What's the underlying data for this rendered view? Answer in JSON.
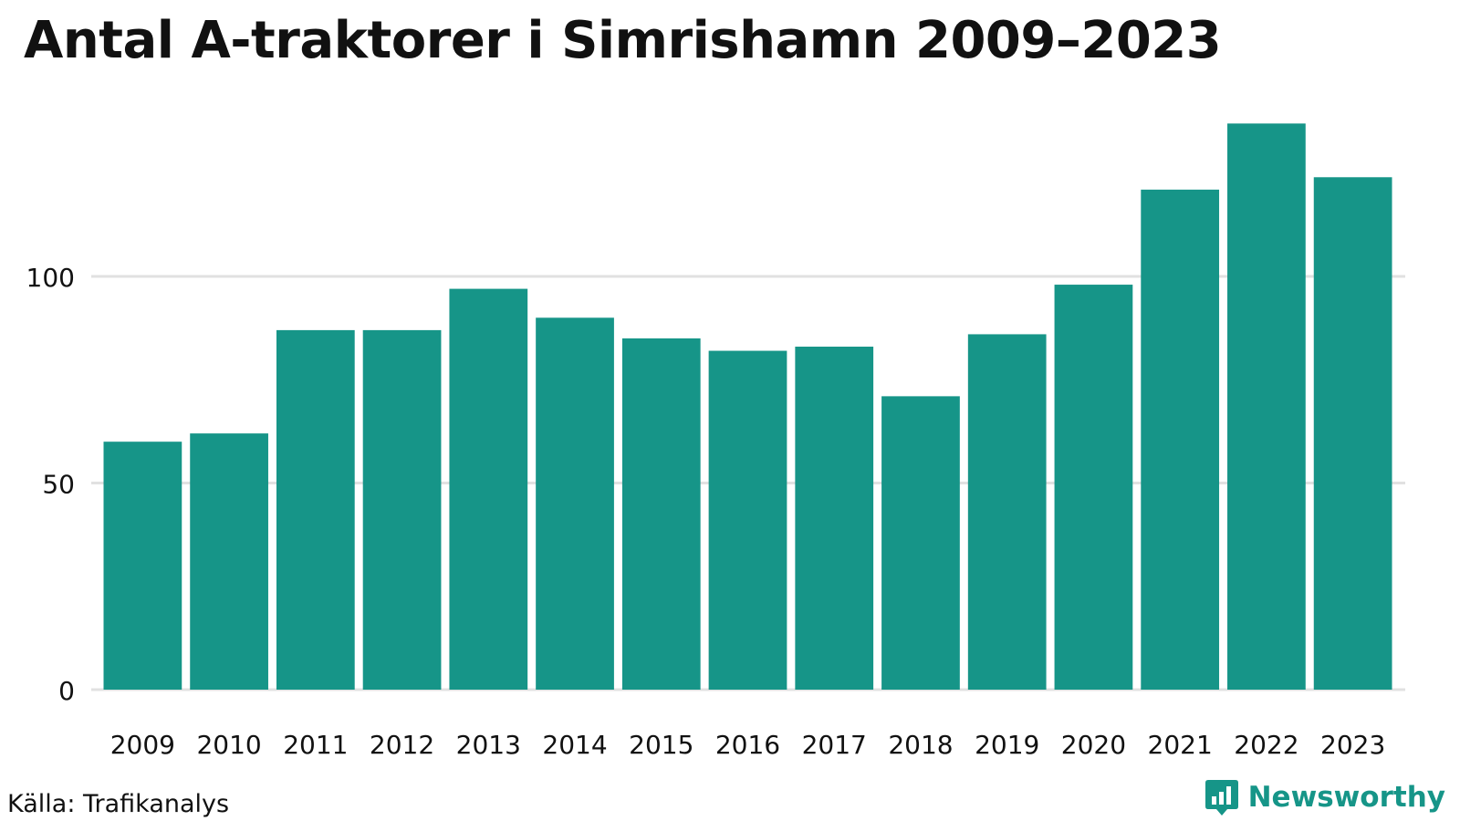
{
  "chart_data": {
    "type": "bar",
    "title": "Antal A-traktorer i Simrishamn 2009–2023",
    "categories": [
      "2009",
      "2010",
      "2011",
      "2012",
      "2013",
      "2014",
      "2015",
      "2016",
      "2017",
      "2018",
      "2019",
      "2020",
      "2021",
      "2022",
      "2023"
    ],
    "values": [
      60,
      62,
      87,
      87,
      97,
      90,
      85,
      82,
      83,
      71,
      86,
      98,
      121,
      137,
      124
    ],
    "yticks": [
      0,
      50,
      100
    ],
    "ylim": [
      0,
      140
    ],
    "xlabel": "",
    "ylabel": "",
    "bar_color": "#169588",
    "grid_color": "#e1e1e1"
  },
  "footer": {
    "source": "Källa: Trafikanalys",
    "brand": "Newsworthy"
  },
  "colors": {
    "brand": "#169588",
    "text": "#111111"
  }
}
